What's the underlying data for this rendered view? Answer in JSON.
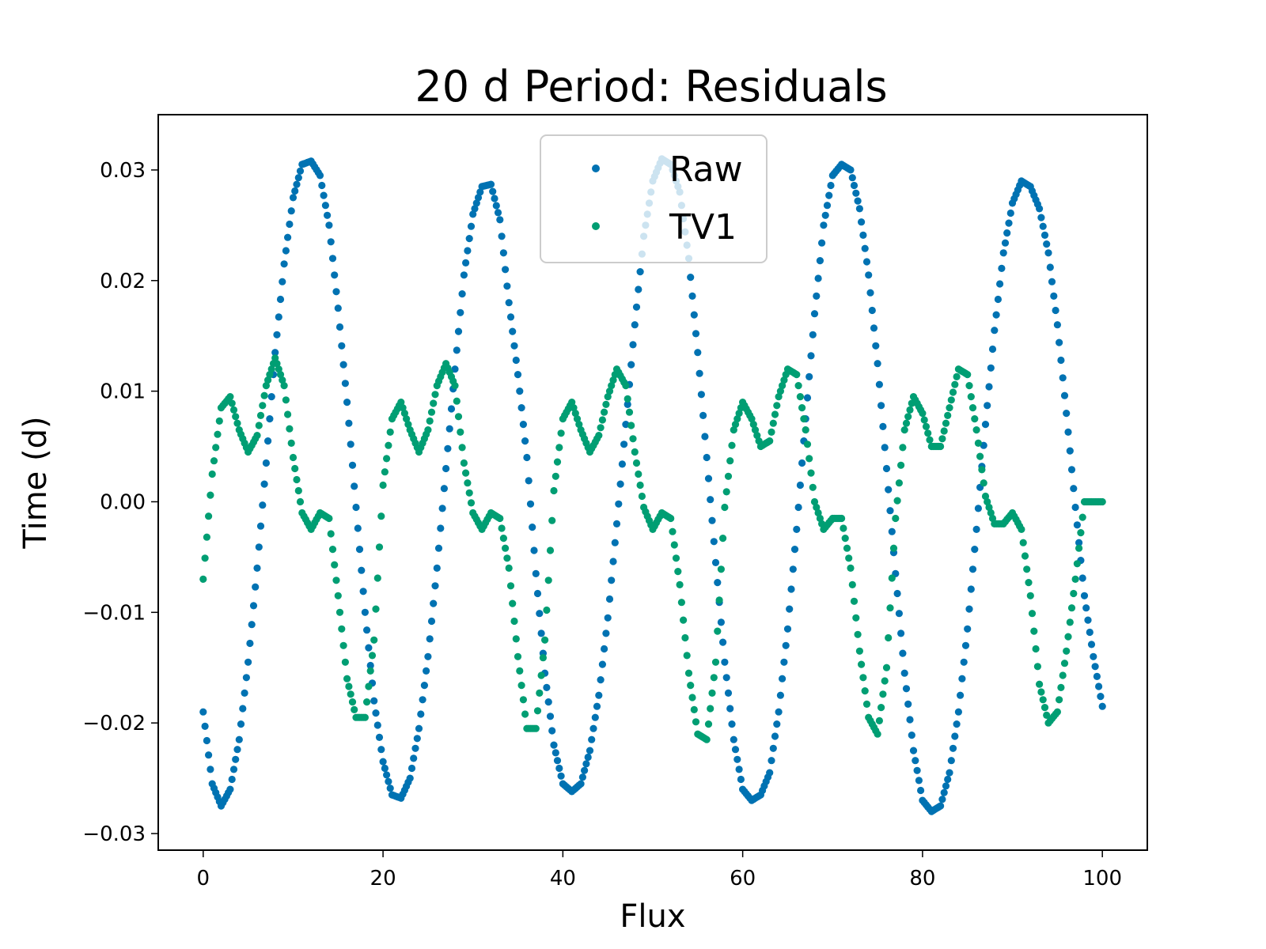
{
  "chart_data": {
    "type": "scatter",
    "title": "20 d Period: Residuals",
    "xlabel": "Flux",
    "ylabel": "Time (d)",
    "xlim": [
      -5,
      105
    ],
    "ylim": [
      -0.0315,
      0.035
    ],
    "x_ticks": [
      0,
      20,
      40,
      60,
      80,
      100
    ],
    "x_tick_labels": [
      "0",
      "20",
      "40",
      "60",
      "80",
      "100"
    ],
    "y_ticks": [
      0.03,
      0.02,
      0.01,
      0.0,
      -0.01,
      -0.02,
      -0.03
    ],
    "y_tick_labels": [
      "0.03",
      "0.02",
      "0.01",
      "0.00",
      "−0.01",
      "−0.02",
      "−0.03"
    ],
    "grid": false,
    "legend_position": "upper center",
    "x_range": [
      0,
      100
    ],
    "series": [
      {
        "name": "Raw",
        "color": "#0072b2",
        "marker": "circle",
        "x": [
          0,
          1,
          2,
          3,
          4,
          5,
          6,
          7,
          8,
          9,
          10,
          11,
          12,
          13,
          14,
          15,
          16,
          17,
          18,
          19,
          20,
          21,
          22,
          23,
          24,
          25,
          26,
          27,
          28,
          29,
          30,
          31,
          32,
          33,
          34,
          35,
          36,
          37,
          38,
          39,
          40,
          41,
          42,
          43,
          44,
          45,
          46,
          47,
          48,
          49,
          50,
          51,
          52,
          53,
          54,
          55,
          56,
          57,
          58,
          59,
          60,
          61,
          62,
          63,
          64,
          65,
          66,
          67,
          68,
          69,
          70,
          71,
          72,
          73,
          74,
          75,
          76,
          77,
          78,
          79,
          80,
          81,
          82,
          83,
          84,
          85,
          86,
          87,
          88,
          89,
          90,
          91,
          92,
          93,
          94,
          95,
          96,
          97,
          98,
          99,
          100
        ],
        "y": [
          -0.019,
          -0.0255,
          -0.0275,
          -0.026,
          -0.0215,
          -0.0145,
          -0.006,
          0.0035,
          0.0135,
          0.0215,
          0.0275,
          0.0305,
          0.0308,
          0.0295,
          0.025,
          0.0175,
          0.009,
          -0.0005,
          -0.01,
          -0.018,
          -0.0235,
          -0.0265,
          -0.0268,
          -0.025,
          -0.0205,
          -0.014,
          -0.006,
          0.003,
          0.012,
          0.0205,
          0.026,
          0.0285,
          0.0287,
          0.0255,
          0.018,
          0.0115,
          0.004,
          -0.0065,
          -0.0155,
          -0.022,
          -0.0255,
          -0.0262,
          -0.0255,
          -0.0225,
          -0.0175,
          -0.0105,
          -0.002,
          0.007,
          0.016,
          0.024,
          0.029,
          0.031,
          0.0305,
          0.028,
          0.022,
          0.0135,
          0.004,
          -0.0055,
          -0.0145,
          -0.0215,
          -0.026,
          -0.027,
          -0.0265,
          -0.0245,
          -0.019,
          -0.0115,
          -0.0025,
          0.0075,
          0.017,
          0.025,
          0.0295,
          0.0305,
          0.03,
          0.0265,
          0.0205,
          0.0125,
          0.003,
          -0.0065,
          -0.0155,
          -0.0225,
          -0.027,
          -0.028,
          -0.0275,
          -0.0245,
          -0.019,
          -0.0115,
          -0.0025,
          0.007,
          0.0155,
          0.0225,
          0.027,
          0.029,
          0.0285,
          0.0265,
          0.0225,
          0.016,
          0.008,
          -0.0005,
          -0.0085,
          -0.014,
          -0.0185
        ]
      },
      {
        "name": "TV1",
        "color": "#009e73",
        "marker": "circle",
        "x": [
          0,
          1,
          2,
          3,
          4,
          5,
          6,
          7,
          8,
          9,
          10,
          11,
          12,
          13,
          14,
          15,
          16,
          17,
          18,
          19,
          20,
          21,
          22,
          23,
          24,
          25,
          26,
          27,
          28,
          29,
          30,
          31,
          32,
          33,
          34,
          35,
          36,
          37,
          38,
          39,
          40,
          41,
          42,
          43,
          44,
          45,
          46,
          47,
          48,
          49,
          50,
          51,
          52,
          53,
          54,
          55,
          56,
          57,
          58,
          59,
          60,
          61,
          62,
          63,
          64,
          65,
          66,
          67,
          68,
          69,
          70,
          71,
          72,
          73,
          74,
          75,
          76,
          77,
          78,
          79,
          80,
          81,
          82,
          83,
          84,
          85,
          86,
          87,
          88,
          89,
          90,
          91,
          92,
          93,
          94,
          95,
          96,
          97,
          98,
          99,
          100
        ],
        "y": [
          -0.007,
          0.0025,
          0.0085,
          0.0095,
          0.0065,
          0.0045,
          0.006,
          0.0105,
          0.013,
          0.0105,
          0.004,
          -0.001,
          -0.0025,
          -0.001,
          -0.0015,
          -0.0085,
          -0.016,
          -0.0195,
          -0.0195,
          -0.0125,
          0.0015,
          0.0075,
          0.009,
          0.0065,
          0.0045,
          0.0065,
          0.0105,
          0.0125,
          0.0105,
          0.0035,
          -0.001,
          -0.0025,
          -0.001,
          -0.0015,
          -0.006,
          -0.014,
          -0.0205,
          -0.0205,
          -0.0125,
          0.001,
          0.0075,
          0.009,
          0.0065,
          0.0045,
          0.006,
          0.0095,
          0.012,
          0.0105,
          0.0045,
          -0.0005,
          -0.0025,
          -0.001,
          -0.0015,
          -0.0075,
          -0.0155,
          -0.021,
          -0.0215,
          -0.0145,
          -0.0005,
          0.0065,
          0.009,
          0.0075,
          0.005,
          0.0055,
          0.0095,
          0.012,
          0.0115,
          0.0065,
          0.0,
          -0.0025,
          -0.0015,
          -0.0015,
          -0.006,
          -0.0135,
          -0.0195,
          -0.021,
          -0.015,
          -0.0015,
          0.0065,
          0.0095,
          0.008,
          0.005,
          0.005,
          0.0085,
          0.012,
          0.0115,
          0.0065,
          0.0005,
          -0.002,
          -0.002,
          -0.001,
          -0.0025,
          -0.0085,
          -0.0165,
          -0.02,
          -0.019,
          -0.0135,
          -0.007,
          0.0,
          0.0,
          0.0
        ]
      }
    ]
  }
}
